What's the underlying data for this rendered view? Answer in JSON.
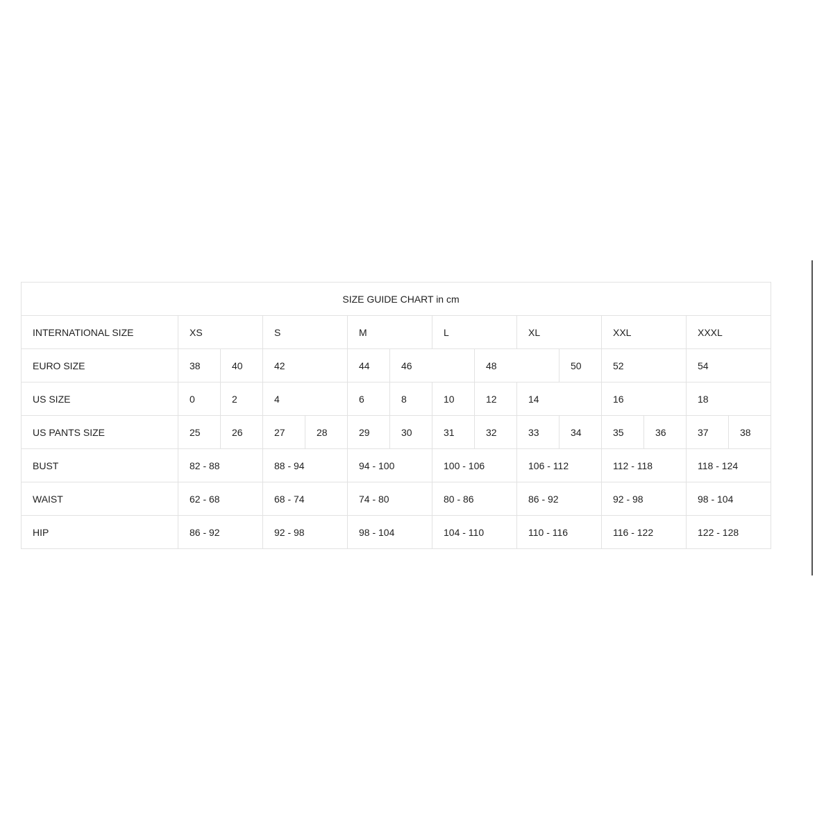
{
  "chart_data": {
    "type": "table",
    "title": "SIZE GUIDE CHART in cm",
    "grid": {
      "label_column_count": 1,
      "size_column_count": 14
    },
    "rows": [
      {
        "label": "INTERNATIONAL SIZE",
        "cells": [
          {
            "text": "XS",
            "span": 2
          },
          {
            "text": "S",
            "span": 2
          },
          {
            "text": "M",
            "span": 2
          },
          {
            "text": "L",
            "span": 2
          },
          {
            "text": "XL",
            "span": 2
          },
          {
            "text": "XXL",
            "span": 2
          },
          {
            "text": "XXXL",
            "span": 2
          }
        ]
      },
      {
        "label": "EURO SIZE",
        "cells": [
          {
            "text": "38",
            "span": 1
          },
          {
            "text": "40",
            "span": 1
          },
          {
            "text": "42",
            "span": 2
          },
          {
            "text": "44",
            "span": 1
          },
          {
            "text": "46",
            "span": 2
          },
          {
            "text": "48",
            "span": 2
          },
          {
            "text": "50",
            "span": 1
          },
          {
            "text": "52",
            "span": 2
          },
          {
            "text": "54",
            "span": 2
          }
        ]
      },
      {
        "label": "US SIZE",
        "cells": [
          {
            "text": "0",
            "span": 1
          },
          {
            "text": "2",
            "span": 1
          },
          {
            "text": "4",
            "span": 2
          },
          {
            "text": "6",
            "span": 1
          },
          {
            "text": "8",
            "span": 1
          },
          {
            "text": "10",
            "span": 1
          },
          {
            "text": "12",
            "span": 1
          },
          {
            "text": "14",
            "span": 2
          },
          {
            "text": "16",
            "span": 2
          },
          {
            "text": "18",
            "span": 2
          }
        ]
      },
      {
        "label": "US PANTS SIZE",
        "cells": [
          {
            "text": "25",
            "span": 1
          },
          {
            "text": "26",
            "span": 1
          },
          {
            "text": "27",
            "span": 1
          },
          {
            "text": "28",
            "span": 1
          },
          {
            "text": "29",
            "span": 1
          },
          {
            "text": "30",
            "span": 1
          },
          {
            "text": "31",
            "span": 1
          },
          {
            "text": "32",
            "span": 1
          },
          {
            "text": "33",
            "span": 1
          },
          {
            "text": "34",
            "span": 1
          },
          {
            "text": "35",
            "span": 1
          },
          {
            "text": "36",
            "span": 1
          },
          {
            "text": "37",
            "span": 1
          },
          {
            "text": "38",
            "span": 1
          }
        ]
      },
      {
        "label": "BUST",
        "cells": [
          {
            "text": "82 - 88",
            "span": 2
          },
          {
            "text": "88 - 94",
            "span": 2
          },
          {
            "text": "94 - 100",
            "span": 2
          },
          {
            "text": "100 - 106",
            "span": 2
          },
          {
            "text": "106 - 112",
            "span": 2
          },
          {
            "text": "112 - 118",
            "span": 2
          },
          {
            "text": "118 - 124",
            "span": 2
          }
        ]
      },
      {
        "label": "WAIST",
        "cells": [
          {
            "text": "62 - 68",
            "span": 2
          },
          {
            "text": "68 - 74",
            "span": 2
          },
          {
            "text": "74 - 80",
            "span": 2
          },
          {
            "text": "80 - 86",
            "span": 2
          },
          {
            "text": "86 - 92",
            "span": 2
          },
          {
            "text": "92 - 98",
            "span": 2
          },
          {
            "text": "98 - 104",
            "span": 2
          }
        ]
      },
      {
        "label": "HIP",
        "cells": [
          {
            "text": "86 - 92",
            "span": 2
          },
          {
            "text": "92 - 98",
            "span": 2
          },
          {
            "text": "98 - 104",
            "span": 2
          },
          {
            "text": "104 - 110",
            "span": 2
          },
          {
            "text": "110 - 116",
            "span": 2
          },
          {
            "text": "116 - 122",
            "span": 2
          },
          {
            "text": "122 - 128",
            "span": 2
          }
        ]
      }
    ],
    "colors": {
      "background": "#ffffff",
      "border": "#e2e2e2",
      "text": "#212121",
      "scrollbar_thumb": "#515151"
    },
    "layout_hints": {
      "grid": "on",
      "legend": "none"
    }
  }
}
